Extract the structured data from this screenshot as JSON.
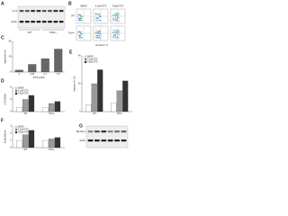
{
  "panel_a": {
    "letter": "A",
    "lanes": [
      "WT",
      "Tcf4-/-"
    ],
    "rows": [
      "LC3",
      "Actin"
    ]
  },
  "panel_b": {
    "letter": "B",
    "conditions": [
      "DMSO",
      "0.1μM STS",
      "0.5μM STS"
    ],
    "rows": [
      "WT",
      "Tcf4-/-"
    ],
    "x_label": "Annexin V"
  },
  "charts": [
    {
      "letter": "C",
      "type": "bar",
      "categories": [
        "0",
        "0.05",
        "0.1",
        "0.5"
      ],
      "values": [
        5,
        20,
        35,
        60
      ],
      "color": "#666666",
      "ylim": [
        0,
        80
      ],
      "yticks": [
        0,
        40,
        80
      ],
      "x_label": "STS (μM)",
      "y_label": "Apoptosis (%)"
    },
    {
      "letter": "D",
      "type": "grouped_bar",
      "categories": [
        "WT",
        "Tcf4-/-"
      ],
      "ylim": [
        0,
        6
      ],
      "yticks": [
        0,
        3,
        6
      ],
      "y_label": "LC3-II/Actin",
      "series": [
        {
          "name": "DMSO",
          "color": "#ffffff",
          "values": [
            1,
            1
          ]
        },
        {
          "name": "0.1μM STS",
          "color": "#999999",
          "values": [
            3,
            2
          ]
        },
        {
          "name": "0.5μM STS",
          "color": "#333333",
          "values": [
            4,
            2.5
          ]
        }
      ]
    },
    {
      "letter": "E",
      "type": "grouped_bar",
      "categories": [
        "WT",
        "Tcf4-/-"
      ],
      "ylim": [
        0,
        40
      ],
      "yticks": [
        0,
        20,
        40
      ],
      "y_label": "Annexin V+ (%)",
      "series": [
        {
          "name": "DMSO",
          "color": "#ffffff",
          "values": [
            5,
            6
          ]
        },
        {
          "name": "0.1μM STS",
          "color": "#999999",
          "values": [
            20,
            15
          ]
        },
        {
          "name": "0.5μM STS",
          "color": "#333333",
          "values": [
            30,
            22
          ]
        }
      ]
    },
    {
      "letter": "F",
      "type": "grouped_bar",
      "categories": [
        "WT",
        "Tcf4-/-"
      ],
      "ylim": [
        0,
        3
      ],
      "yticks": [
        0,
        1,
        2,
        3
      ],
      "y_label": "Beclin1/Actin",
      "series": [
        {
          "name": "DMSO",
          "color": "#ffffff",
          "values": [
            1,
            1
          ]
        },
        {
          "name": "0.1μM STS",
          "color": "#999999",
          "values": [
            1.8,
            1.2
          ]
        },
        {
          "name": "0.5μM STS",
          "color": "#333333",
          "values": [
            2.4,
            1.4
          ]
        }
      ]
    }
  ],
  "panel_g": {
    "letter": "G",
    "rows": [
      "Beclin1",
      "Actin"
    ]
  }
}
